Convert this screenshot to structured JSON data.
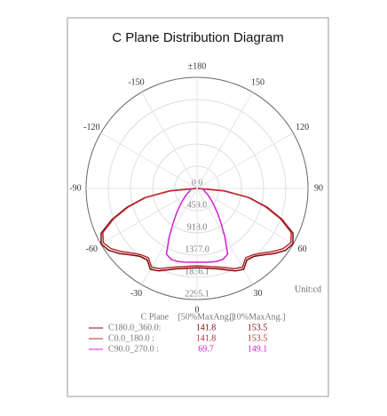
{
  "chart_data": {
    "type": "polar",
    "title": "C Plane Distribution Diagram",
    "unit_label": "Unit:cd",
    "rlim": [
      0,
      2295.1
    ],
    "rticks": [
      {
        "value": 0,
        "label": "0.0"
      },
      {
        "value": 459,
        "label": "459.0"
      },
      {
        "value": 918,
        "label": "918.0"
      },
      {
        "value": 1377,
        "label": "1377.0"
      },
      1836.1,
      2295.1
    ],
    "angle_ticks": [
      0,
      30,
      60,
      90,
      120,
      150,
      {
        "value": 180,
        "label": "±180"
      },
      -150,
      -120,
      -90,
      -60,
      -30
    ],
    "angles": [
      -90,
      -85,
      -80,
      -75,
      -70,
      -65,
      -60,
      -55,
      -50,
      -45,
      -40,
      -35,
      -30,
      -25,
      -20,
      -15,
      -10,
      -5,
      0,
      5,
      10,
      15,
      20,
      25,
      30,
      35,
      40,
      45,
      50,
      55,
      60,
      65,
      70,
      75,
      80,
      85,
      90
    ],
    "legend_header": [
      "C Plane",
      "[50%MaxAng.]",
      "[10%MaxAng.]"
    ],
    "series": [
      {
        "name": "C180.0_360.0:",
        "color": "#7a0c0c",
        "beam_angle_50": 141.8,
        "beam_angle_10": 153.5,
        "values": [
          20,
          570,
          1100,
          1500,
          1870,
          2190,
          2290,
          2230,
          2090,
          1940,
          1830,
          1800,
          1930,
          1880,
          1790,
          1720,
          1680,
          1650,
          1640,
          1650,
          1680,
          1720,
          1790,
          1880,
          1930,
          1800,
          1830,
          1940,
          2090,
          2230,
          2290,
          2190,
          1870,
          1500,
          1100,
          570,
          20
        ]
      },
      {
        "name": "C0.0_180.0 :",
        "color": "#c0282e",
        "beam_angle_50": 141.8,
        "beam_angle_10": 153.5,
        "values": [
          20,
          550,
          1080,
          1470,
          1836,
          2150,
          2240,
          2170,
          2030,
          1890,
          1790,
          1750,
          1880,
          1830,
          1740,
          1680,
          1640,
          1610,
          1600,
          1610,
          1640,
          1680,
          1740,
          1830,
          1880,
          1750,
          1790,
          1890,
          2030,
          2170,
          2240,
          2150,
          1836,
          1470,
          1080,
          550,
          20
        ]
      },
      {
        "name": "C90.0_270.0 :",
        "color": "#d020d0",
        "beam_angle_50": 69.7,
        "beam_angle_10": 149.1,
        "values": [
          100,
          110,
          130,
          150,
          170,
          200,
          250,
          310,
          390,
          500,
          650,
          850,
          1150,
          1500,
          1560,
          1560,
          1545,
          1530,
          1524,
          1530,
          1545,
          1560,
          1560,
          1500,
          1150,
          850,
          650,
          500,
          390,
          310,
          250,
          200,
          170,
          150,
          130,
          110,
          100
        ]
      }
    ]
  }
}
